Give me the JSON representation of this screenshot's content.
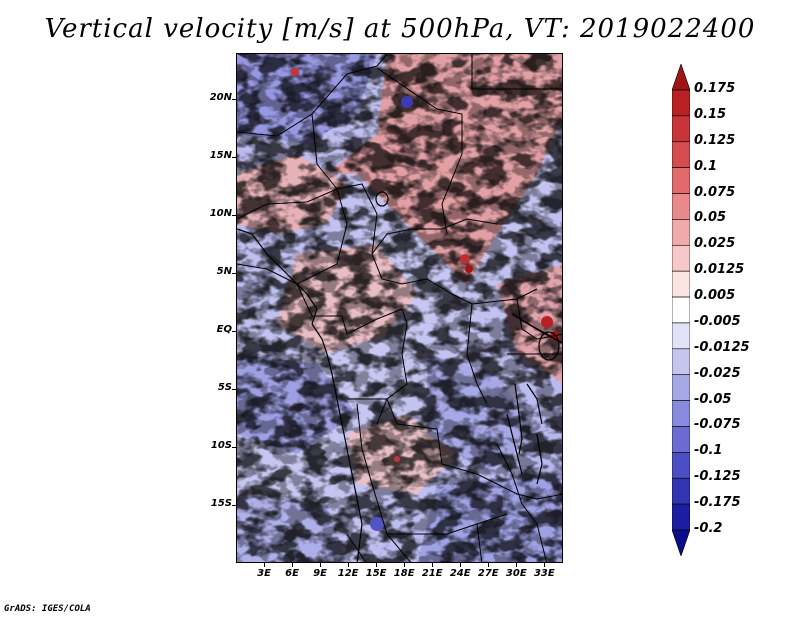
{
  "title": "Vertical velocity [m/s] at 500hPa, VT: 2019022400",
  "credit": "GrADS: IGES/COLA",
  "map": {
    "variable": "Vertical velocity",
    "units": "m/s",
    "level": "500hPa",
    "valid_time": "2019022400",
    "lat_range": [
      -20,
      24
    ],
    "lon_range": [
      0,
      35
    ],
    "lat_labels": [
      "20N",
      "15N",
      "10N",
      "5N",
      "EQ",
      "5S",
      "10S",
      "15S"
    ],
    "lat_values": [
      20,
      15,
      10,
      5,
      0,
      -5,
      -10,
      -15
    ],
    "lon_labels": [
      "3E",
      "6E",
      "9E",
      "12E",
      "15E",
      "18E",
      "21E",
      "24E",
      "27E",
      "30E",
      "33E"
    ],
    "lon_values": [
      3,
      6,
      9,
      12,
      15,
      18,
      21,
      24,
      27,
      30,
      33
    ]
  },
  "colorbar": {
    "labels": [
      "0.175",
      "0.15",
      "0.125",
      "0.1",
      "0.075",
      "0.05",
      "0.025",
      "0.0125",
      "0.005",
      "-0.005",
      "-0.0125",
      "-0.025",
      "-0.05",
      "-0.075",
      "-0.1",
      "-0.125",
      "-0.175",
      "-0.2"
    ],
    "colors": [
      "#a01418",
      "#b82024",
      "#c83438",
      "#d44c50",
      "#e06a6c",
      "#e88a8c",
      "#f0aaaa",
      "#f6c8c8",
      "#fbe4e2",
      "#ffffff",
      "#e2e2f6",
      "#c4c6ee",
      "#a6a8e6",
      "#888ade",
      "#6a6cd2",
      "#4c4ec4",
      "#3234b2",
      "#1c1ea2",
      "#0c0c8a"
    ]
  },
  "palette": {
    "positive": "#e07a78",
    "negative": "#7a7ad8",
    "border": "#000000"
  }
}
